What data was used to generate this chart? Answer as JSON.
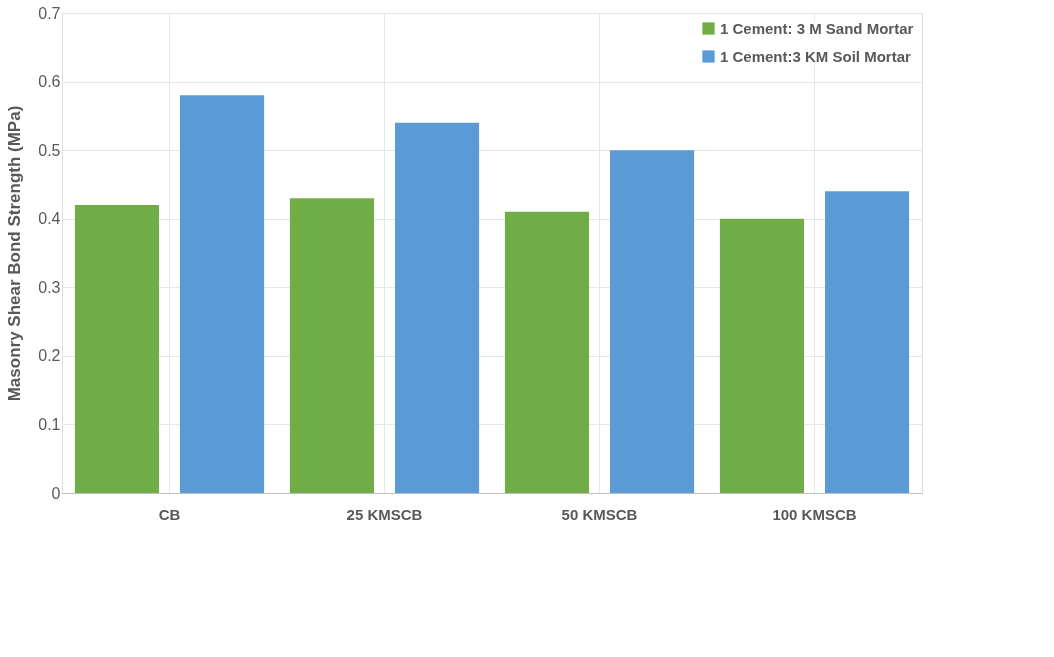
{
  "chart_data": {
    "type": "bar",
    "ylabel": "Masonry  Shear Bond Strength (MPa)",
    "categories": [
      "CB",
      "25 KMSCB",
      "50 KMSCB",
      "100 KMSCB"
    ],
    "series": [
      {
        "name": "1 Cement: 3 M Sand Mortar",
        "color": "#70ad47",
        "values": [
          0.42,
          0.43,
          0.41,
          0.4
        ]
      },
      {
        "name": "1 Cement:3 KM Soil Mortar",
        "color": "#5b9bd5",
        "values": [
          0.58,
          0.54,
          0.5,
          0.44
        ]
      }
    ],
    "ylim": [
      0,
      0.7
    ],
    "yticks": [
      0,
      0.1,
      0.2,
      0.3,
      0.4,
      0.5,
      0.6,
      0.7
    ],
    "grid": true,
    "legend": "top right"
  }
}
